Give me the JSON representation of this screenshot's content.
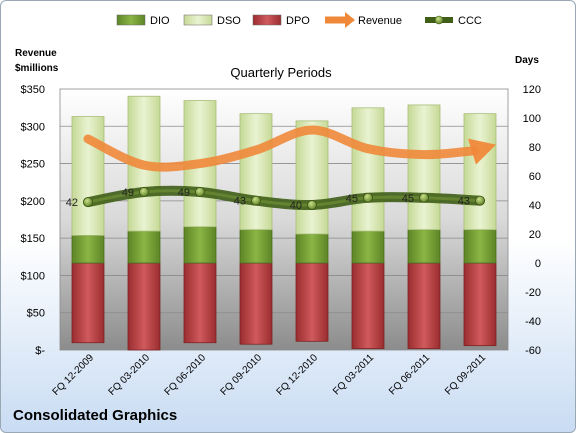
{
  "company": "Consolidated Graphics",
  "chart_data": {
    "type": "bar",
    "title": "Quarterly Periods",
    "y_left_label": [
      "Revenue",
      "$millions"
    ],
    "y_right_label": "Days",
    "y_left_range": [
      0,
      350
    ],
    "y_left_ticks": [
      "$-",
      "$50",
      "$100",
      "$150",
      "$200",
      "$250",
      "$300",
      "$350"
    ],
    "y_right_range": [
      -60,
      120
    ],
    "y_right_ticks": [
      "-60",
      "-40",
      "-20",
      "0",
      "20",
      "40",
      "60",
      "80",
      "100",
      "120"
    ],
    "categories": [
      "FQ 12-2009",
      "FQ 03-2010",
      "FQ 06-2010",
      "FQ 09-2010",
      "FQ 12-2010",
      "FQ 03-2011",
      "FQ 06-2011",
      "FQ 09-2011"
    ],
    "series": [
      {
        "name": "DIO",
        "color": "#6f9a2c",
        "values": [
          19,
          22,
          25,
          23,
          20,
          22,
          23,
          23
        ]
      },
      {
        "name": "DSO",
        "color": "#d9e8b4",
        "values": [
          82,
          93,
          87,
          80,
          78,
          85,
          86,
          80
        ]
      },
      {
        "name": "DPO",
        "color": "#b5383b",
        "values": [
          -55,
          -60,
          -55,
          -56,
          -54,
          -59,
          -59,
          -57
        ]
      },
      {
        "name": "Revenue",
        "color": "#f0883a",
        "values": [
          283,
          248,
          250,
          268,
          295,
          270,
          262,
          270
        ]
      },
      {
        "name": "CCC",
        "color": "#4a6b1c",
        "values": [
          42,
          49,
          49,
          43,
          40,
          45,
          45,
          43
        ]
      }
    ],
    "grid": true,
    "legend_position": "top"
  }
}
